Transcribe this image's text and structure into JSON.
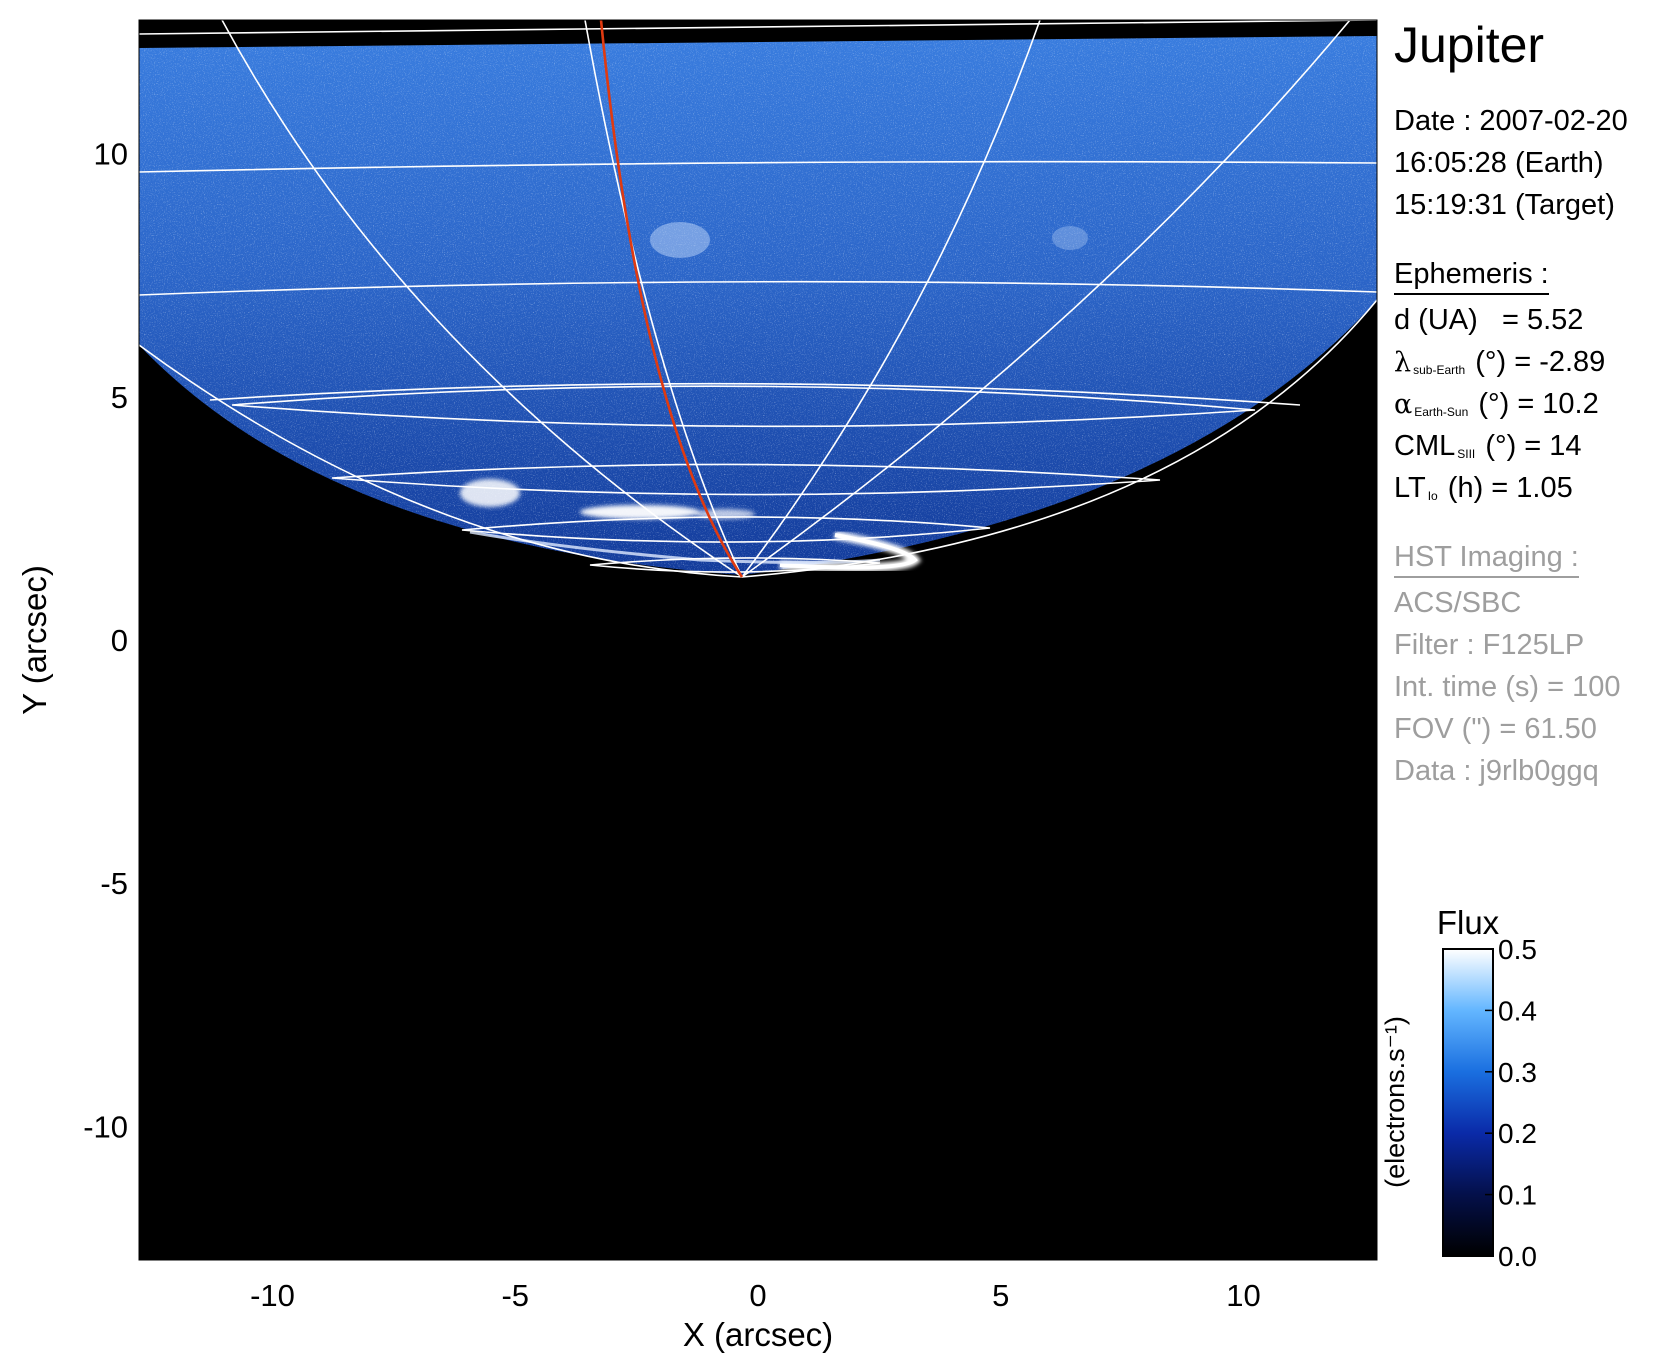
{
  "figure": {
    "target": "Jupiter",
    "date_line": "Date : 2007-02-20",
    "earth_time_line": "16:05:28 (Earth)",
    "target_time_line": "15:19:31 (Target)"
  },
  "ephemeris": {
    "heading": "Ephemeris :",
    "distance": {
      "label": "d (UA)",
      "eq": "= 5.52"
    },
    "lambda": {
      "symbol": "λ",
      "subscript": "sub-Earth",
      "unit": "(°)",
      "eq": "= -2.89"
    },
    "alpha": {
      "symbol": "α",
      "subscript": "Earth-Sun",
      "unit": "(°)",
      "eq": "= 10.2"
    },
    "cml": {
      "symbol": "CML",
      "subscript": "SIII",
      "unit": "(°)",
      "eq": "= 14"
    },
    "lt": {
      "symbol": "LT",
      "subscript": "Io",
      "unit": "(h)",
      "eq": "= 1.05"
    }
  },
  "imaging": {
    "heading": "HST Imaging :",
    "instrument": "ACS/SBC",
    "filter": "Filter : F125LP",
    "int_time": "Int. time (s) = 100",
    "fov": "FOV (\") = 61.50",
    "data_id": "Data : j9rlb0ggq"
  },
  "axes": {
    "xlabel": "X (arcsec)",
    "ylabel": "Y (arcsec)",
    "xlim": [
      -12.75,
      12.75
    ],
    "ylim": [
      -12.75,
      12.75
    ],
    "xticks": [
      "-10",
      "-5",
      "0",
      "5",
      "10"
    ],
    "xtick_values": [
      -10,
      -5,
      0,
      5,
      10
    ],
    "yticks": [
      "10",
      "5",
      "0",
      "-5",
      "-10"
    ],
    "ytick_values": [
      10,
      5,
      0,
      -5,
      -10
    ]
  },
  "colorbar": {
    "title": "Flux",
    "label": "(electrons.s⁻¹)",
    "ticks": [
      "0.5",
      "0.4",
      "0.3",
      "0.2",
      "0.1",
      "0.0"
    ],
    "tick_values": [
      0.5,
      0.4,
      0.3,
      0.2,
      0.1,
      0.0
    ],
    "range": [
      0.0,
      0.5
    ]
  },
  "colors": {
    "background": "#000000",
    "disk_emission": "#2f6fd6",
    "aurora": "#ffffff",
    "grid": "#ffffff",
    "meridian": "#e03a10"
  }
}
